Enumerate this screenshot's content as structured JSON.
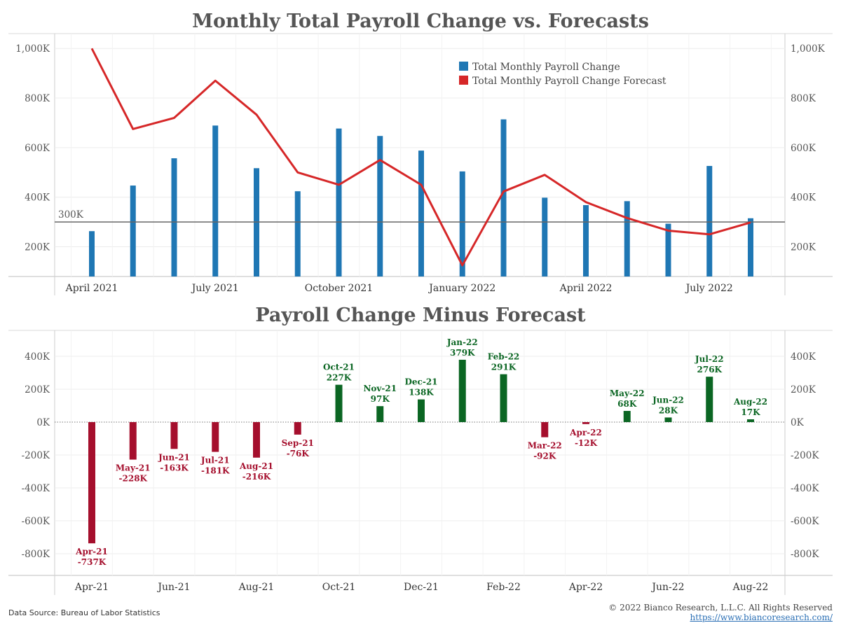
{
  "colors": {
    "bar_blue": "#1f77b4",
    "line_red": "#d62728",
    "positive_green": "#0b6623",
    "negative_red": "#a50f2d",
    "reference_line": "#666666"
  },
  "chart_data": [
    {
      "type": "bar",
      "title": "Monthly Total Payroll Change vs. Forecasts",
      "categories": [
        "Apr-21",
        "May-21",
        "Jun-21",
        "Jul-21",
        "Aug-21",
        "Sep-21",
        "Oct-21",
        "Nov-21",
        "Dec-21",
        "Jan-22",
        "Feb-22",
        "Mar-22",
        "Apr-22",
        "May-22",
        "Jun-22",
        "Jul-22",
        "Aug-22"
      ],
      "series": [
        {
          "name": "Total Monthly Payroll Change",
          "type": "bar",
          "values": [
            263,
            447,
            557,
            689,
            517,
            424,
            677,
            647,
            588,
            504,
            714,
            398,
            368,
            384,
            293,
            526,
            315
          ]
        },
        {
          "name": "Total Monthly Payroll Change Forecast",
          "type": "line",
          "values": [
            1000,
            675,
            720,
            870,
            733,
            500,
            450,
            550,
            450,
            125,
            423,
            490,
            380,
            316,
            265,
            250,
            298
          ]
        }
      ],
      "reference_line": {
        "value": 300,
        "label": "300K"
      },
      "x_tick_labels": [
        "April 2021",
        "July 2021",
        "October 2021",
        "January 2022",
        "April 2022",
        "July 2022"
      ],
      "x_tick_indices": [
        0,
        3,
        6,
        9,
        12,
        15
      ],
      "y_tick_values": [
        200,
        400,
        600,
        800,
        1000
      ],
      "y_tick_labels": [
        "200K",
        "400K",
        "600K",
        "800K",
        "1,000K"
      ],
      "ylim": [
        80,
        1060
      ],
      "legend_position": "top-right",
      "grid": true
    },
    {
      "type": "bar",
      "title": "Payroll Change Minus Forecast",
      "categories": [
        "Apr-21",
        "May-21",
        "Jun-21",
        "Jul-21",
        "Aug-21",
        "Sep-21",
        "Oct-21",
        "Nov-21",
        "Dec-21",
        "Jan-22",
        "Feb-22",
        "Mar-22",
        "Apr-22",
        "May-22",
        "Jun-22",
        "Jul-22",
        "Aug-22"
      ],
      "values": [
        -737,
        -228,
        -163,
        -181,
        -216,
        -76,
        227,
        97,
        138,
        379,
        291,
        -92,
        -12,
        68,
        28,
        276,
        17
      ],
      "value_labels": [
        "-737K",
        "-228K",
        "-163K",
        "-181K",
        "-216K",
        "-76K",
        "227K",
        "97K",
        "138K",
        "379K",
        "291K",
        "-92K",
        "-12K",
        "68K",
        "28K",
        "276K",
        "17K"
      ],
      "x_tick_labels": [
        "Apr-21",
        "Jun-21",
        "Aug-21",
        "Oct-21",
        "Dec-21",
        "Feb-22",
        "Apr-22",
        "Jun-22",
        "Aug-22"
      ],
      "x_tick_indices": [
        0,
        2,
        4,
        6,
        8,
        10,
        12,
        14,
        16
      ],
      "y_tick_values": [
        400,
        200,
        0,
        -200,
        -400,
        -600,
        -800
      ],
      "y_tick_labels": [
        "400K",
        "200K",
        "0K",
        "-200K",
        "-400K",
        "-600K",
        "-800K"
      ],
      "ylim": [
        -910,
        530
      ],
      "grid": true
    }
  ],
  "footer": {
    "source": "Data Source: Bureau of Labor Statistics",
    "copyright": "© 2022 Bianco Research, L.L.C. All Rights Reserved",
    "url": "https://www.biancoresearch.com/"
  }
}
